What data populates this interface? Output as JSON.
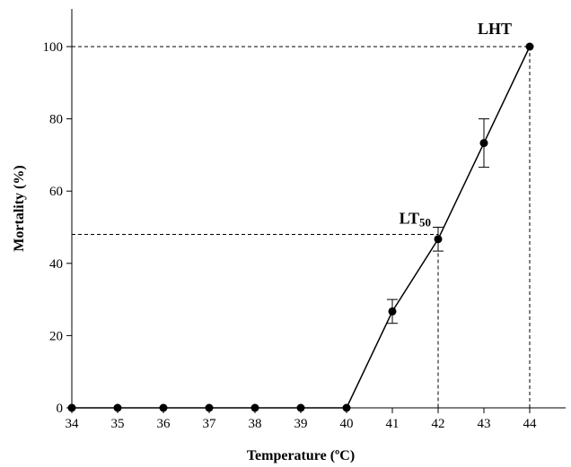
{
  "chart_data": {
    "type": "line",
    "title": "",
    "xlabel": "Temperature (ºC)",
    "ylabel": "Mortality (%)",
    "x": [
      34,
      35,
      36,
      37,
      38,
      39,
      40,
      41,
      42,
      43,
      44
    ],
    "series": [
      {
        "values": [
          0,
          0,
          0,
          0,
          0,
          0,
          0,
          26.7,
          46.7,
          73.3,
          100
        ],
        "error": [
          0,
          0,
          0,
          0,
          0,
          0,
          0,
          3.3,
          3.3,
          6.7,
          0
        ]
      }
    ],
    "xlim": [
      34,
      44
    ],
    "ylim": [
      0,
      100
    ],
    "xticks": [
      34,
      35,
      36,
      37,
      38,
      39,
      40,
      41,
      42,
      43,
      44
    ],
    "yticks": [
      0,
      20,
      40,
      60,
      80,
      100
    ],
    "grid": false,
    "annotations": [
      {
        "label": "LT",
        "subscript": "50",
        "x": 42,
        "y": 48
      },
      {
        "label": "LHT",
        "x": 44,
        "y": 100
      }
    ],
    "colors": {
      "line": "#000000",
      "marker": "#000000",
      "axis": "#000000"
    }
  }
}
